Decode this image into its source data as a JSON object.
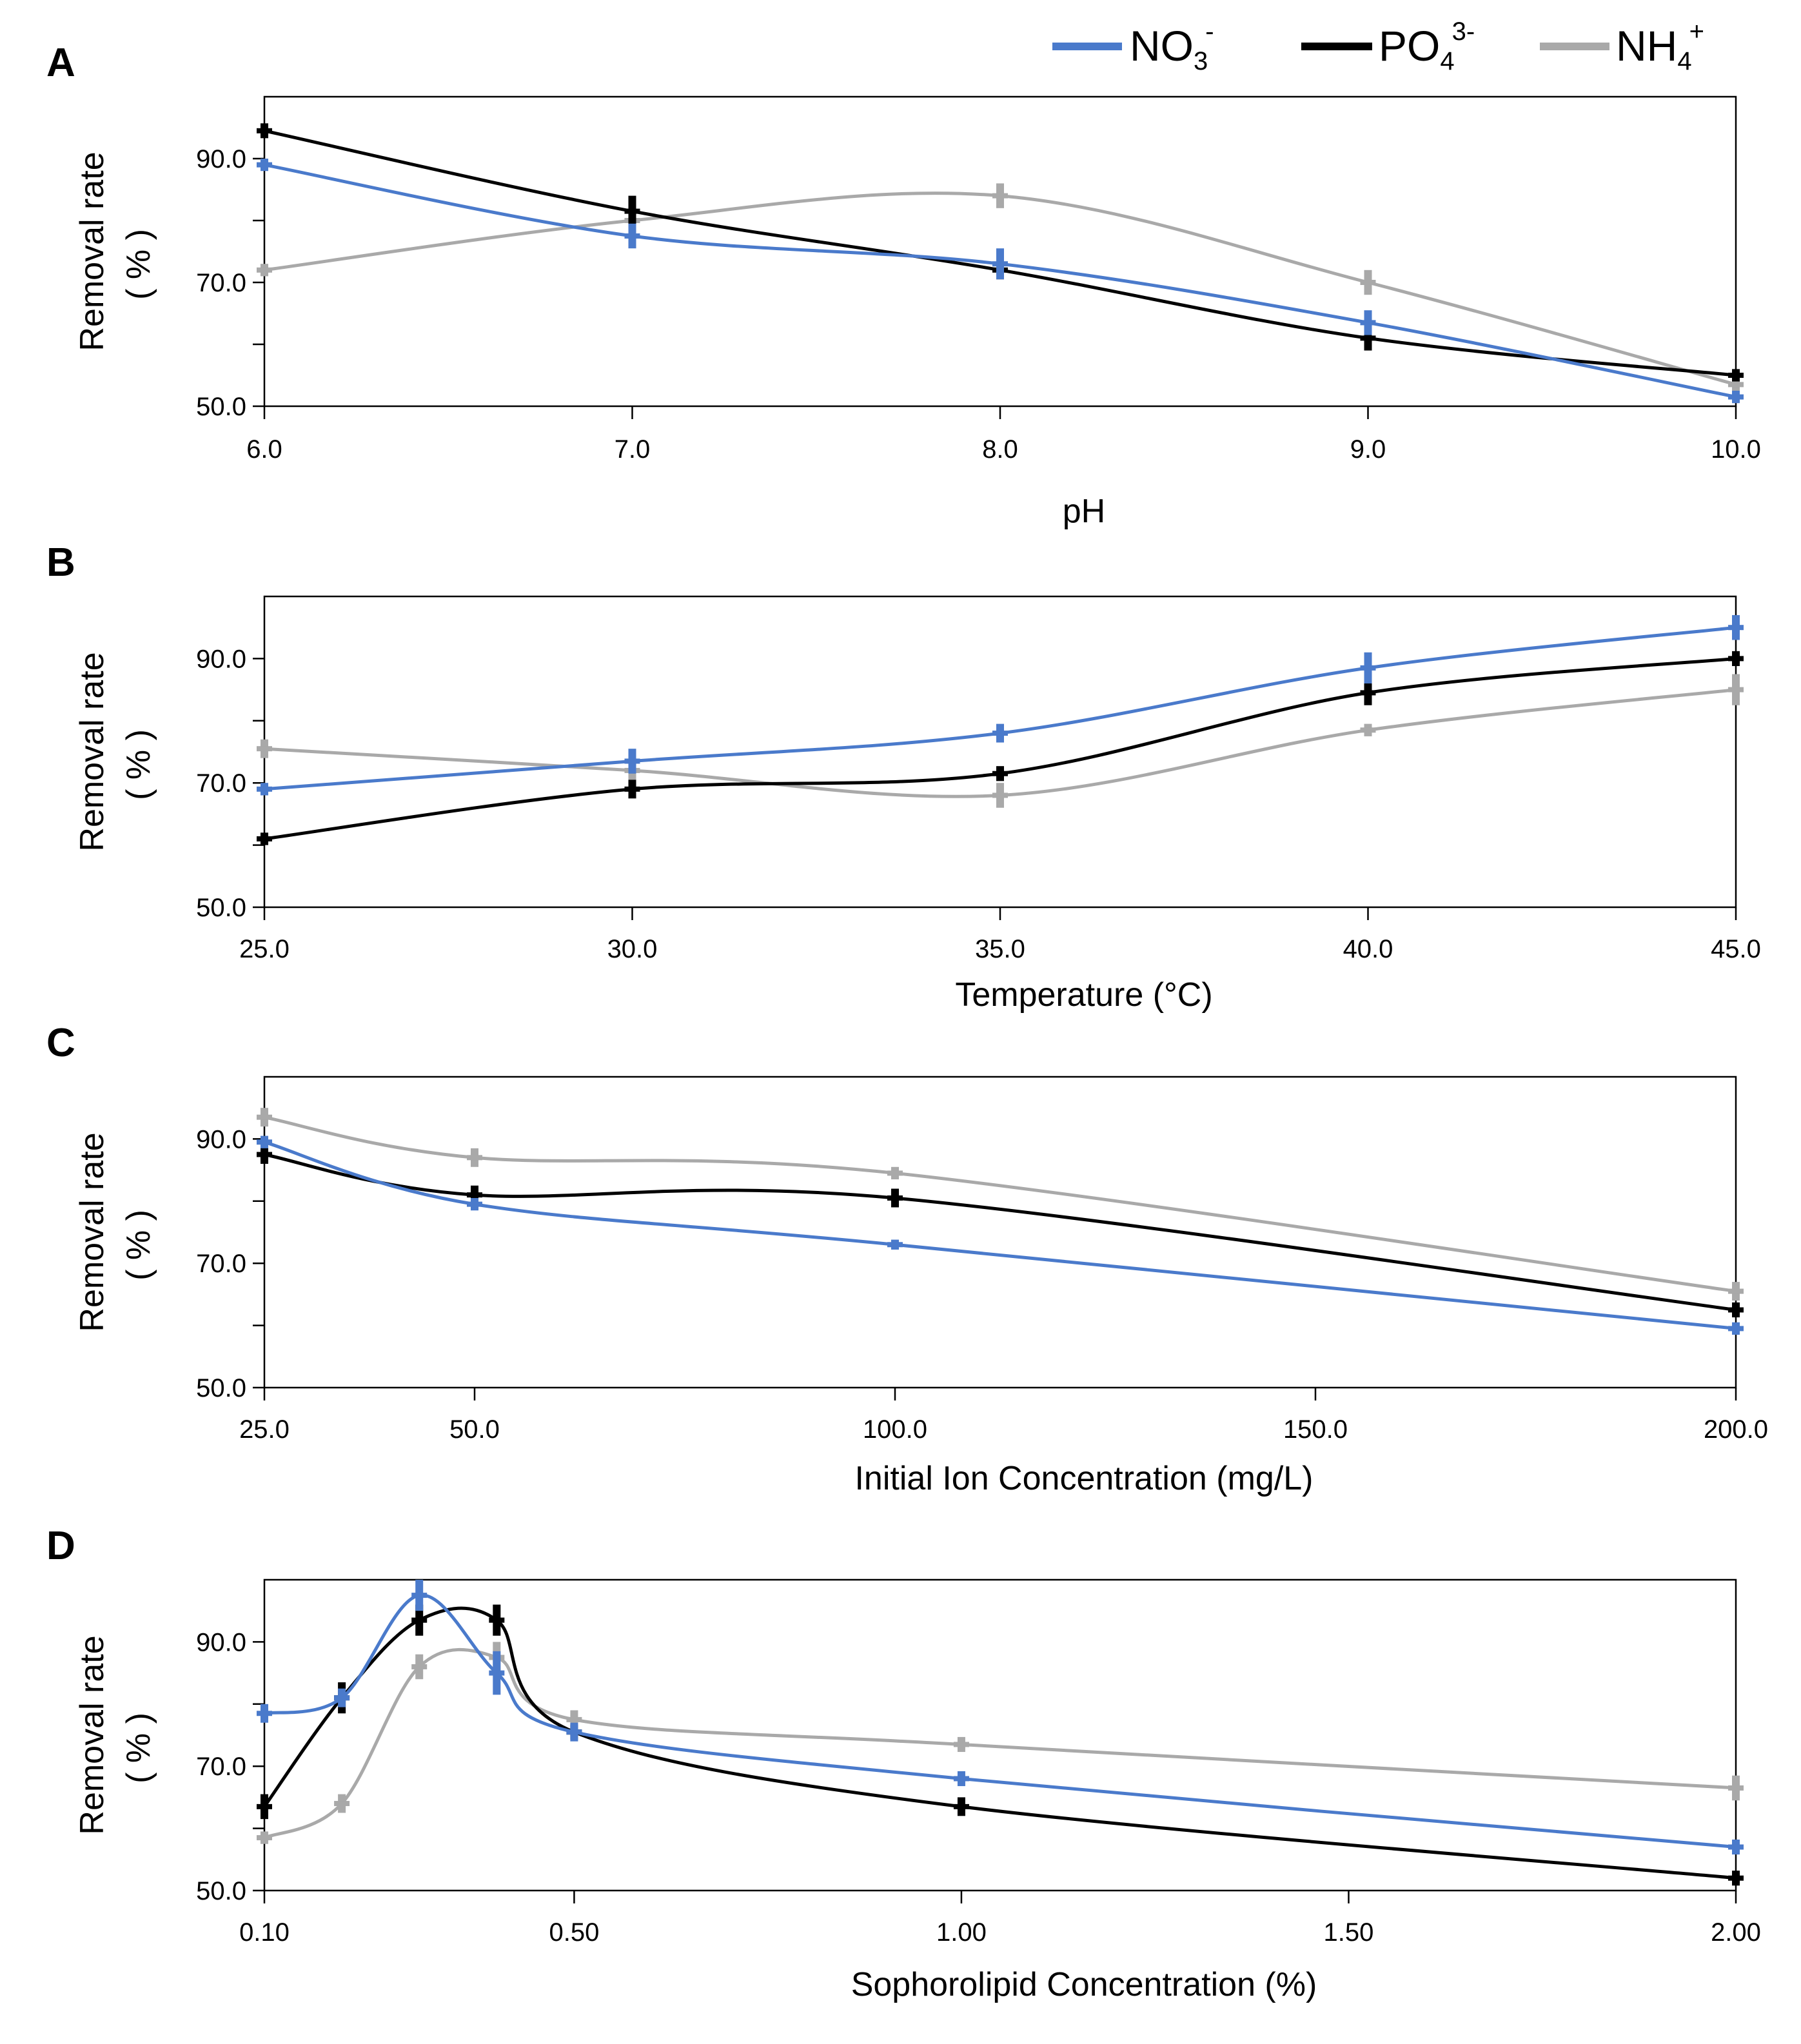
{
  "legend": {
    "items": [
      {
        "name": "NO3-",
        "base": "NO",
        "sub": "3",
        "sup": "-",
        "color": "#4a7acb"
      },
      {
        "name": "PO43-",
        "base": "PO",
        "sub": "4",
        "sup": "3-",
        "color": "#000000"
      },
      {
        "name": "NH4+",
        "base": "NH",
        "sub": "4",
        "sup": "+",
        "color": "#a9a9a9"
      }
    ]
  },
  "chart_data": [
    {
      "panel": "A",
      "type": "line",
      "xlabel": "pH",
      "ylabel": "Removal rate",
      "ylabel_unit": "( % )",
      "xlim": [
        6.0,
        10.0
      ],
      "ylim": [
        50.0,
        100.0
      ],
      "x_ticks": [
        "6.0",
        "7.0",
        "8.0",
        "9.0",
        "10.0"
      ],
      "x_tick_values": [
        6.0,
        7.0,
        8.0,
        9.0,
        10.0
      ],
      "y_ticks": [
        "50.0",
        "70.0",
        "90.0"
      ],
      "y_tick_values": [
        50.0,
        70.0,
        90.0
      ],
      "y_minor_ticks": [
        60.0,
        80.0
      ],
      "x": [
        6.0,
        7.0,
        8.0,
        9.0,
        10.0
      ],
      "series": [
        {
          "name": "NO3-",
          "values": [
            89.0,
            77.5,
            73.0,
            63.5,
            51.5
          ],
          "errors": [
            1.0,
            2.0,
            2.5,
            2.0,
            1.0
          ]
        },
        {
          "name": "PO43-",
          "values": [
            94.5,
            81.5,
            72.0,
            61.0,
            55.0
          ],
          "errors": [
            1.2,
            2.5,
            1.5,
            2.0,
            1.0
          ]
        },
        {
          "name": "NH4+",
          "values": [
            72.0,
            80.0,
            84.0,
            70.0,
            53.5
          ],
          "errors": [
            1.0,
            3.0,
            2.0,
            2.0,
            1.5
          ]
        }
      ]
    },
    {
      "panel": "B",
      "type": "line",
      "xlabel": "Temperature (°C)",
      "ylabel": "Removal rate",
      "ylabel_unit": "( % )",
      "xlim": [
        25.0,
        45.0
      ],
      "ylim": [
        50.0,
        100.0
      ],
      "x_ticks": [
        "25.0",
        "30.0",
        "35.0",
        "40.0",
        "45.0"
      ],
      "x_tick_values": [
        25.0,
        30.0,
        35.0,
        40.0,
        45.0
      ],
      "y_ticks": [
        "50.0",
        "70.0",
        "90.0"
      ],
      "y_tick_values": [
        50.0,
        70.0,
        90.0
      ],
      "y_minor_ticks": [
        60.0,
        80.0
      ],
      "x": [
        25.0,
        30.0,
        35.0,
        40.0,
        45.0
      ],
      "series": [
        {
          "name": "NO3-",
          "values": [
            69.0,
            73.5,
            78.0,
            88.5,
            95.0
          ],
          "errors": [
            1.0,
            2.0,
            1.5,
            2.5,
            2.0
          ]
        },
        {
          "name": "PO43-",
          "values": [
            61.0,
            69.0,
            71.5,
            84.5,
            90.0
          ],
          "errors": [
            1.0,
            1.5,
            1.2,
            2.0,
            1.2
          ]
        },
        {
          "name": "NH4+",
          "values": [
            75.5,
            72.0,
            68.0,
            78.5,
            85.0
          ],
          "errors": [
            1.5,
            2.0,
            2.0,
            1.0,
            2.5
          ]
        }
      ]
    },
    {
      "panel": "C",
      "type": "line",
      "xlabel": "Initial Ion Concentration (mg/L)",
      "ylabel": "Removal rate",
      "ylabel_unit": "( % )",
      "xlim": [
        25.0,
        200.0
      ],
      "ylim": [
        50.0,
        100.0
      ],
      "x_ticks": [
        "25.0",
        "50.0",
        "100.0",
        "150.0",
        "200.0"
      ],
      "x_tick_values": [
        25.0,
        50.0,
        100.0,
        150.0,
        200.0
      ],
      "y_ticks": [
        "50.0",
        "70.0",
        "90.0"
      ],
      "y_tick_values": [
        50.0,
        70.0,
        90.0
      ],
      "y_minor_ticks": [
        60.0,
        80.0
      ],
      "x": [
        25.0,
        50.0,
        100.0,
        200.0
      ],
      "series": [
        {
          "name": "NO3-",
          "values": [
            89.5,
            79.5,
            73.0,
            59.5
          ],
          "errors": [
            1.0,
            1.0,
            0.8,
            1.0
          ]
        },
        {
          "name": "PO43-",
          "values": [
            87.5,
            81.0,
            80.5,
            62.5
          ],
          "errors": [
            1.5,
            1.5,
            1.5,
            1.2
          ]
        },
        {
          "name": "NH4+",
          "values": [
            93.5,
            87.0,
            84.5,
            65.5
          ],
          "errors": [
            1.5,
            1.5,
            1.0,
            1.5
          ]
        }
      ]
    },
    {
      "panel": "D",
      "type": "line",
      "xlabel": "Sophorolipid Concentration (%)",
      "ylabel": "Removal rate",
      "ylabel_unit": "( % )",
      "xlim": [
        0.1,
        2.0
      ],
      "ylim": [
        50.0,
        100.0
      ],
      "x_ticks": [
        "0.10",
        "0.50",
        "1.00",
        "1.50",
        "2.00"
      ],
      "x_tick_values": [
        0.1,
        0.5,
        1.0,
        1.5,
        2.0
      ],
      "y_ticks": [
        "50.0",
        "70.0",
        "90.0"
      ],
      "y_tick_values": [
        50.0,
        70.0,
        90.0
      ],
      "y_minor_ticks": [
        60.0,
        80.0
      ],
      "x": [
        0.1,
        0.2,
        0.3,
        0.4,
        0.5,
        1.0,
        2.0
      ],
      "series": [
        {
          "name": "NO3-",
          "values": [
            78.5,
            81.0,
            97.5,
            85.0,
            75.5,
            68.0,
            57.0
          ],
          "errors": [
            1.5,
            1.5,
            2.5,
            3.5,
            1.5,
            1.2,
            1.2
          ]
        },
        {
          "name": "PO43-",
          "values": [
            63.5,
            81.0,
            93.5,
            93.5,
            75.5,
            63.5,
            52.0
          ],
          "errors": [
            2.0,
            2.5,
            2.5,
            2.5,
            1.2,
            1.5,
            1.2
          ]
        },
        {
          "name": "NH4+",
          "values": [
            58.5,
            64.0,
            86.0,
            87.5,
            77.5,
            73.5,
            66.5
          ],
          "errors": [
            1.0,
            1.5,
            2.0,
            2.5,
            1.5,
            1.2,
            2.0
          ]
        }
      ]
    }
  ]
}
